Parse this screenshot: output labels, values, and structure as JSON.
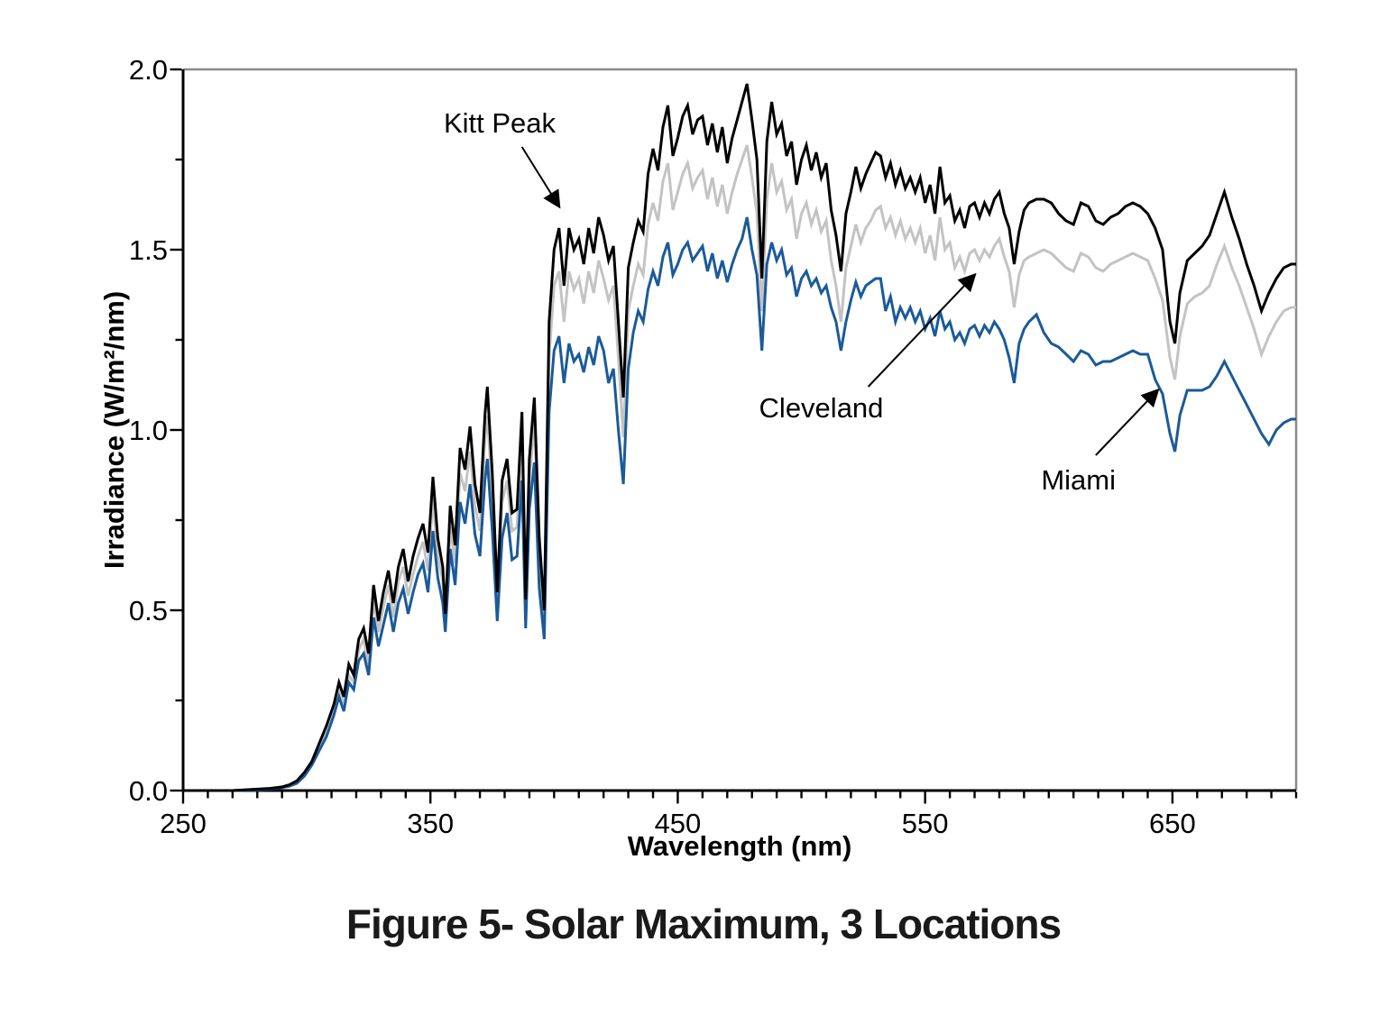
{
  "figure": {
    "caption": "Figure 5- Solar Maximum, 3 Locations"
  },
  "chart_data": {
    "type": "line",
    "title": "",
    "xlabel": "Wavelength (nm)",
    "ylabel": "Irradiance (W/m²/nm)",
    "xlim": [
      250,
      700
    ],
    "ylim": [
      0.0,
      2.0
    ],
    "x_major_ticks": [
      250,
      350,
      450,
      550,
      650
    ],
    "x_minor_tick_step": 10,
    "y_major_ticks": [
      0.0,
      0.5,
      1.0,
      1.5,
      2.0
    ],
    "y_minor_tick_step": 0.25,
    "grid": false,
    "legend_position": "none - labeled by arrow annotations",
    "axis_color": "#000000",
    "frame_color": "#8a8a8a",
    "wavelengths_nm": [
      250,
      260,
      270,
      280,
      285,
      290,
      293,
      296,
      299,
      302,
      305,
      308,
      311,
      313,
      315,
      317,
      319,
      321,
      323,
      325,
      327,
      329,
      331,
      333,
      335,
      337,
      339,
      341,
      343,
      345,
      347,
      349,
      351,
      353,
      355,
      356,
      358,
      360,
      362,
      364,
      366,
      368,
      370,
      372,
      373,
      375,
      377,
      379,
      381,
      383,
      385,
      387,
      388.5,
      390,
      392,
      394,
      396,
      398,
      400,
      402,
      404,
      406,
      408,
      410,
      412,
      414,
      416,
      418,
      420,
      422,
      424,
      426,
      428,
      430,
      432,
      434,
      436,
      438,
      440,
      442,
      444,
      446,
      448,
      450,
      452,
      454,
      456,
      458,
      460,
      462,
      464,
      466,
      468,
      470,
      472,
      474,
      476,
      478,
      480,
      482,
      484,
      486,
      488,
      490,
      492,
      494,
      496,
      498,
      500,
      502,
      504,
      506,
      508,
      510,
      512,
      514,
      516,
      518,
      520,
      522,
      524,
      526,
      528,
      530,
      532,
      534,
      536,
      538,
      540,
      542,
      544,
      546,
      548,
      550,
      552,
      554,
      556,
      558,
      560,
      562,
      564,
      566,
      568,
      570,
      572,
      574,
      576,
      578,
      580,
      582,
      584,
      586,
      588,
      590,
      592,
      595,
      598,
      601,
      604,
      607,
      610,
      613,
      616,
      619,
      622,
      625,
      628,
      631,
      634,
      637,
      640,
      643,
      646,
      649,
      651,
      653,
      656,
      659,
      662,
      665,
      668,
      671,
      674,
      677,
      680,
      683,
      686,
      689,
      692,
      695,
      698,
      700
    ],
    "series": [
      {
        "name": "Kitt Peak",
        "color": "#000000",
        "values": [
          0,
          0,
          0,
          0.004,
          0.006,
          0.01,
          0.016,
          0.027,
          0.05,
          0.08,
          0.13,
          0.18,
          0.24,
          0.3,
          0.26,
          0.35,
          0.32,
          0.42,
          0.45,
          0.38,
          0.57,
          0.47,
          0.55,
          0.61,
          0.52,
          0.62,
          0.67,
          0.58,
          0.65,
          0.7,
          0.74,
          0.66,
          0.87,
          0.7,
          0.62,
          0.49,
          0.79,
          0.68,
          0.95,
          0.89,
          1.01,
          0.85,
          0.77,
          1.04,
          1.12,
          0.88,
          0.55,
          0.86,
          0.92,
          0.77,
          0.78,
          1.05,
          0.53,
          0.92,
          1.09,
          0.7,
          0.5,
          1.3,
          1.5,
          1.56,
          1.4,
          1.56,
          1.5,
          1.53,
          1.46,
          1.56,
          1.49,
          1.59,
          1.54,
          1.47,
          1.51,
          1.3,
          1.09,
          1.45,
          1.52,
          1.58,
          1.55,
          1.71,
          1.78,
          1.72,
          1.84,
          1.9,
          1.76,
          1.81,
          1.87,
          1.9,
          1.82,
          1.86,
          1.87,
          1.79,
          1.85,
          1.77,
          1.84,
          1.74,
          1.81,
          1.86,
          1.91,
          1.96,
          1.86,
          1.75,
          1.42,
          1.8,
          1.91,
          1.82,
          1.85,
          1.76,
          1.8,
          1.68,
          1.75,
          1.79,
          1.72,
          1.77,
          1.7,
          1.74,
          1.61,
          1.54,
          1.44,
          1.6,
          1.66,
          1.73,
          1.67,
          1.71,
          1.74,
          1.77,
          1.76,
          1.7,
          1.74,
          1.68,
          1.72,
          1.67,
          1.7,
          1.66,
          1.7,
          1.63,
          1.68,
          1.6,
          1.73,
          1.63,
          1.65,
          1.58,
          1.61,
          1.56,
          1.62,
          1.63,
          1.59,
          1.63,
          1.6,
          1.64,
          1.66,
          1.6,
          1.56,
          1.46,
          1.55,
          1.61,
          1.63,
          1.64,
          1.64,
          1.63,
          1.6,
          1.58,
          1.57,
          1.63,
          1.62,
          1.58,
          1.57,
          1.59,
          1.6,
          1.62,
          1.63,
          1.62,
          1.6,
          1.56,
          1.5,
          1.3,
          1.24,
          1.38,
          1.47,
          1.49,
          1.51,
          1.54,
          1.6,
          1.66,
          1.59,
          1.53,
          1.46,
          1.4,
          1.33,
          1.38,
          1.42,
          1.45,
          1.46,
          1.46
        ]
      },
      {
        "name": "Cleveland",
        "color": "#c3c3c3",
        "values": [
          0,
          0,
          0,
          0.003,
          0.005,
          0.009,
          0.014,
          0.024,
          0.045,
          0.075,
          0.12,
          0.165,
          0.22,
          0.28,
          0.24,
          0.32,
          0.3,
          0.39,
          0.42,
          0.35,
          0.53,
          0.44,
          0.51,
          0.57,
          0.48,
          0.58,
          0.62,
          0.54,
          0.6,
          0.65,
          0.69,
          0.61,
          0.81,
          0.65,
          0.58,
          0.46,
          0.73,
          0.63,
          0.88,
          0.83,
          0.94,
          0.79,
          0.72,
          0.97,
          1.04,
          0.82,
          0.51,
          0.8,
          0.86,
          0.72,
          0.73,
          0.98,
          0.49,
          0.86,
          1.02,
          0.65,
          0.47,
          1.2,
          1.4,
          1.44,
          1.3,
          1.44,
          1.39,
          1.42,
          1.35,
          1.44,
          1.38,
          1.47,
          1.42,
          1.36,
          1.4,
          1.2,
          0.98,
          1.33,
          1.4,
          1.46,
          1.43,
          1.57,
          1.63,
          1.58,
          1.69,
          1.74,
          1.61,
          1.66,
          1.71,
          1.74,
          1.67,
          1.7,
          1.72,
          1.64,
          1.7,
          1.62,
          1.68,
          1.6,
          1.66,
          1.71,
          1.75,
          1.79,
          1.7,
          1.6,
          1.33,
          1.64,
          1.74,
          1.66,
          1.69,
          1.61,
          1.64,
          1.53,
          1.6,
          1.63,
          1.57,
          1.61,
          1.55,
          1.58,
          1.47,
          1.4,
          1.3,
          1.45,
          1.51,
          1.57,
          1.52,
          1.56,
          1.58,
          1.61,
          1.62,
          1.56,
          1.59,
          1.54,
          1.58,
          1.53,
          1.56,
          1.52,
          1.56,
          1.49,
          1.54,
          1.47,
          1.59,
          1.5,
          1.52,
          1.45,
          1.48,
          1.44,
          1.49,
          1.5,
          1.47,
          1.5,
          1.48,
          1.51,
          1.53,
          1.48,
          1.44,
          1.34,
          1.43,
          1.47,
          1.48,
          1.49,
          1.5,
          1.49,
          1.47,
          1.45,
          1.44,
          1.49,
          1.48,
          1.45,
          1.44,
          1.46,
          1.47,
          1.48,
          1.49,
          1.48,
          1.47,
          1.42,
          1.36,
          1.2,
          1.14,
          1.26,
          1.35,
          1.37,
          1.38,
          1.4,
          1.46,
          1.51,
          1.45,
          1.4,
          1.34,
          1.28,
          1.21,
          1.26,
          1.3,
          1.33,
          1.34,
          1.34
        ]
      },
      {
        "name": "Miami",
        "color": "#1b5a99",
        "values": [
          0,
          0,
          0,
          0.002,
          0.004,
          0.008,
          0.012,
          0.02,
          0.04,
          0.07,
          0.11,
          0.15,
          0.21,
          0.26,
          0.22,
          0.3,
          0.28,
          0.36,
          0.38,
          0.32,
          0.48,
          0.4,
          0.46,
          0.52,
          0.44,
          0.52,
          0.56,
          0.49,
          0.55,
          0.6,
          0.63,
          0.55,
          0.72,
          0.59,
          0.52,
          0.44,
          0.67,
          0.57,
          0.8,
          0.74,
          0.85,
          0.71,
          0.65,
          0.86,
          0.92,
          0.72,
          0.47,
          0.7,
          0.77,
          0.64,
          0.65,
          0.86,
          0.45,
          0.78,
          0.91,
          0.56,
          0.42,
          1.05,
          1.22,
          1.26,
          1.13,
          1.24,
          1.19,
          1.21,
          1.16,
          1.23,
          1.18,
          1.26,
          1.22,
          1.13,
          1.17,
          1.0,
          0.85,
          1.17,
          1.27,
          1.33,
          1.3,
          1.39,
          1.44,
          1.4,
          1.48,
          1.52,
          1.43,
          1.46,
          1.5,
          1.52,
          1.47,
          1.49,
          1.51,
          1.44,
          1.49,
          1.42,
          1.47,
          1.41,
          1.46,
          1.5,
          1.53,
          1.59,
          1.5,
          1.43,
          1.22,
          1.46,
          1.52,
          1.47,
          1.5,
          1.43,
          1.45,
          1.37,
          1.42,
          1.44,
          1.4,
          1.42,
          1.38,
          1.4,
          1.34,
          1.3,
          1.22,
          1.3,
          1.36,
          1.41,
          1.37,
          1.4,
          1.41,
          1.42,
          1.42,
          1.33,
          1.37,
          1.3,
          1.34,
          1.31,
          1.34,
          1.3,
          1.33,
          1.28,
          1.31,
          1.26,
          1.33,
          1.28,
          1.3,
          1.25,
          1.27,
          1.24,
          1.28,
          1.29,
          1.26,
          1.29,
          1.27,
          1.3,
          1.28,
          1.25,
          1.2,
          1.13,
          1.24,
          1.28,
          1.3,
          1.32,
          1.27,
          1.24,
          1.23,
          1.21,
          1.19,
          1.22,
          1.21,
          1.18,
          1.19,
          1.19,
          1.2,
          1.21,
          1.22,
          1.21,
          1.21,
          1.14,
          1.1,
          0.99,
          0.94,
          1.04,
          1.11,
          1.11,
          1.11,
          1.12,
          1.15,
          1.19,
          1.15,
          1.11,
          1.07,
          1.03,
          0.99,
          0.96,
          1.0,
          1.02,
          1.03,
          1.03
        ]
      }
    ],
    "annotations": [
      {
        "label": "Kitt Peak",
        "points_to_series": "Kitt Peak",
        "text_at": {
          "wavelength": 378,
          "irradiance": 1.85
        },
        "arrow_from": {
          "wavelength": 387,
          "irradiance": 1.785
        },
        "arrow_to": {
          "wavelength": 402,
          "irradiance": 1.62
        }
      },
      {
        "label": "Cleveland",
        "points_to_series": "Cleveland",
        "text_at": {
          "wavelength": 508,
          "irradiance": 1.06
        },
        "arrow_from": {
          "wavelength": 527,
          "irradiance": 1.12
        },
        "arrow_to": {
          "wavelength": 570,
          "irradiance": 1.43
        }
      },
      {
        "label": "Miami",
        "points_to_series": "Miami",
        "text_at": {
          "wavelength": 612,
          "irradiance": 0.86
        },
        "arrow_from": {
          "wavelength": 619,
          "irradiance": 0.93
        },
        "arrow_to": {
          "wavelength": 644,
          "irradiance": 1.11
        }
      }
    ]
  }
}
